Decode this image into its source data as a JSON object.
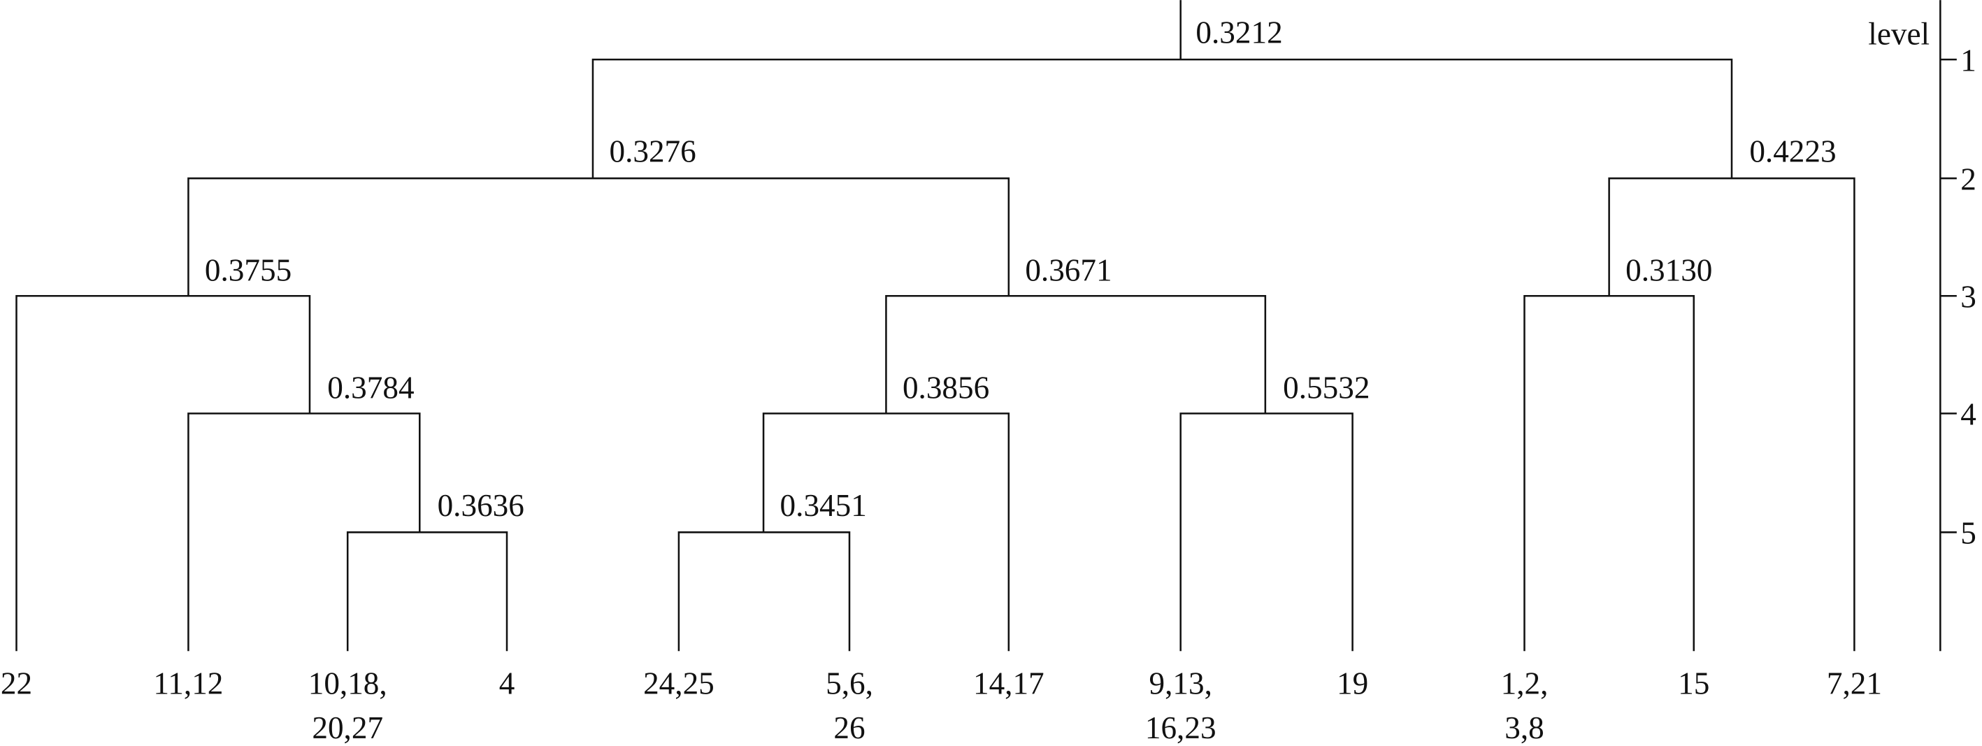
{
  "axis": {
    "title": "level",
    "ticks": [
      "1",
      "2",
      "3",
      "4",
      "5"
    ]
  },
  "nodes": [
    {
      "label": "0.3212"
    },
    {
      "label": "0.3276"
    },
    {
      "label": "0.4223"
    },
    {
      "label": "0.3755"
    },
    {
      "label": "0.3671"
    },
    {
      "label": "0.3130"
    },
    {
      "label": "0.3784"
    },
    {
      "label": "0.3856"
    },
    {
      "label": "0.5532"
    },
    {
      "label": "0.3636"
    },
    {
      "label": "0.3451"
    }
  ],
  "leaves": [
    [
      "22"
    ],
    [
      "11,12"
    ],
    [
      "10,18,",
      "20,27"
    ],
    [
      "4"
    ],
    [
      "24,25"
    ],
    [
      "5,6,",
      "26"
    ],
    [
      "14,17"
    ],
    [
      "9,13,",
      "16,23"
    ],
    [
      "19"
    ],
    [
      "1,2,",
      "3,8"
    ],
    [
      "15"
    ],
    [
      "7,21"
    ]
  ]
}
